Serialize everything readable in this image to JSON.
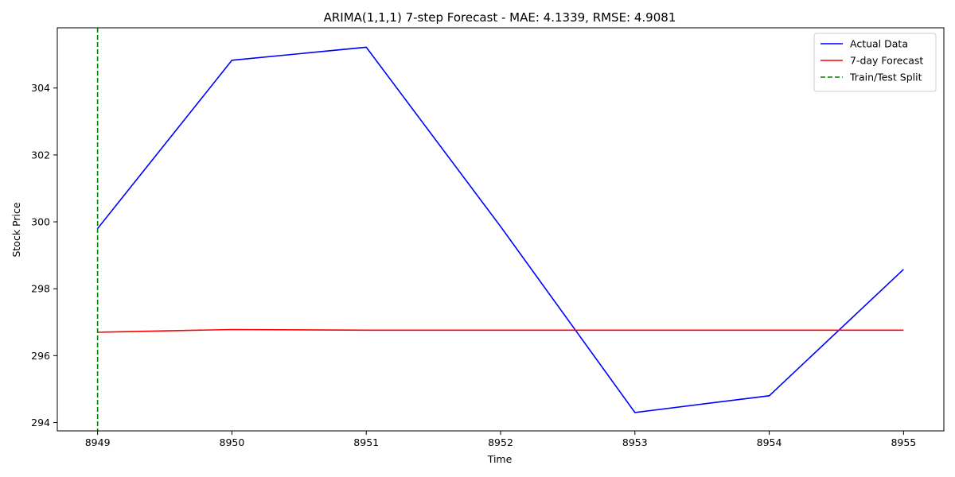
{
  "chart_data": {
    "type": "line",
    "title": "ARIMA(1,1,1) 7-step Forecast - MAE: 4.1339, RMSE: 4.9081",
    "xlabel": "Time",
    "ylabel": "Stock Price",
    "x": [
      8949,
      8950,
      8951,
      8952,
      8953,
      8954,
      8955
    ],
    "xlim": [
      8948.7,
      8955.3
    ],
    "ylim": [
      293.75,
      305.8
    ],
    "x_ticks": [
      8949,
      8950,
      8951,
      8952,
      8953,
      8954,
      8955
    ],
    "y_ticks": [
      294,
      296,
      298,
      300,
      302,
      304
    ],
    "grid": false,
    "legend_position": "top-right",
    "series": [
      {
        "name": "Actual Data",
        "color": "#0000ff",
        "style": "solid",
        "values": [
          299.8,
          304.83,
          305.22,
          299.86,
          294.3,
          294.8,
          298.58
        ]
      },
      {
        "name": "7-day Forecast",
        "color": "#ff0000",
        "style": "solid",
        "values": [
          296.7,
          296.78,
          296.76,
          296.76,
          296.76,
          296.76,
          296.76
        ]
      }
    ],
    "vline": {
      "name": "Train/Test Split",
      "x": 8949,
      "color": "#008000",
      "style": "dashed"
    }
  }
}
